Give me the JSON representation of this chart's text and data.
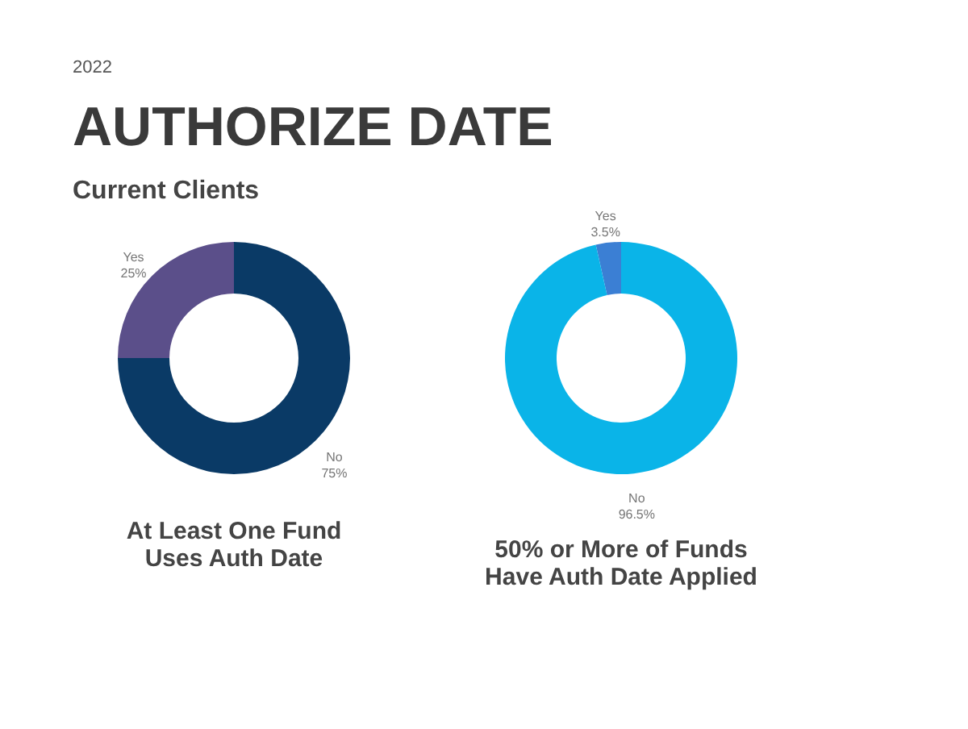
{
  "chart_data": [
    {
      "type": "donut",
      "title": "At Least One Fund Uses Auth Date",
      "annotations": [
        "2022",
        "AUTHORIZE DATE",
        "Current Clients"
      ],
      "categories": [
        "Yes",
        "No"
      ],
      "values": [
        25,
        75
      ],
      "value_labels": [
        "25%",
        "75%"
      ],
      "colors": [
        "#5b4f8a",
        "#0a3a66"
      ]
    },
    {
      "type": "donut",
      "title": "50% or More of Funds Have Auth Date Applied",
      "categories": [
        "Yes",
        "No"
      ],
      "values": [
        3.5,
        96.5
      ],
      "value_labels": [
        "3.5%",
        "96.5%"
      ],
      "colors": [
        "#3b7fd4",
        "#0ab4e8"
      ]
    }
  ]
}
